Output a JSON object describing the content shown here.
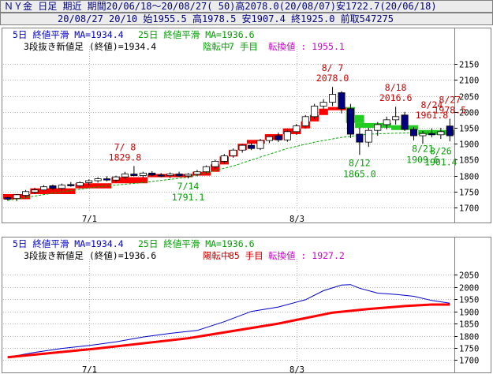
{
  "header": {
    "line1": "ＮＹ金 日足 期近 期間20/06/18～20/08/27( 50)高2078.0(20/08/07)安1722.7(20/06/18)",
    "line2": "20/08/27 20/10 始1955.5 高1978.5 安1907.4 終1925.0 前取547275"
  },
  "colors": {
    "blue_text": "#0000cc",
    "green_text": "#00a000",
    "red_text": "#cc0000",
    "up_box": "#ffffff",
    "down_box": "#000080",
    "red_brick": "#ff0000",
    "green_brick": "#22cc22",
    "ma5_line": "#0000cc",
    "ma25_line": "#00aa00",
    "frame": "#808080"
  },
  "chart_data": [
    {
      "type": "candlestick",
      "legend": {
        "ma5": "5日 終値平滑 MA=1934.4",
        "ma25": "25日 終値平滑 MA=1936.6",
        "renko_prefix": "3段抜き新値足 (終値)=1934.4",
        "renko_state": "陰転中",
        "renko_count": "7 手目",
        "renko_pivot": "転換値 : 1955.1"
      },
      "xticks": [
        {
          "index": 9,
          "label": "7/1"
        },
        {
          "index": 32,
          "label": "8/3"
        }
      ],
      "yticks": [
        1700,
        1750,
        1800,
        1850,
        1900,
        1950,
        2000,
        2050,
        2100,
        2150
      ],
      "ylim": [
        1690,
        2185
      ],
      "ma25_path": [
        [
          0,
          1722
        ],
        [
          5,
          1745
        ],
        [
          10,
          1765
        ],
        [
          15,
          1778
        ],
        [
          20,
          1795
        ],
        [
          25,
          1830
        ],
        [
          28,
          1858
        ],
        [
          31,
          1885
        ],
        [
          34,
          1905
        ],
        [
          37,
          1920
        ],
        [
          40,
          1930
        ],
        [
          43,
          1933
        ],
        [
          46,
          1935
        ],
        [
          49,
          1936
        ]
      ],
      "renko": [
        {
          "from": 0,
          "to": 2,
          "lo": 1726,
          "hi": 1742,
          "color": "red"
        },
        {
          "from": 3,
          "to": 7,
          "lo": 1742,
          "hi": 1760,
          "color": "red"
        },
        {
          "from": 8,
          "to": 11,
          "lo": 1760,
          "hi": 1776,
          "color": "red"
        },
        {
          "from": 12,
          "to": 15,
          "lo": 1776,
          "hi": 1795,
          "color": "red"
        },
        {
          "from": 16,
          "to": 20,
          "lo": 1795,
          "hi": 1805,
          "color": "red"
        },
        {
          "from": 21,
          "to": 22,
          "lo": 1800,
          "hi": 1812,
          "color": "red"
        },
        {
          "from": 23,
          "to": 23,
          "lo": 1812,
          "hi": 1835,
          "color": "red"
        },
        {
          "from": 24,
          "to": 24,
          "lo": 1835,
          "hi": 1860,
          "color": "red"
        },
        {
          "from": 25,
          "to": 25,
          "lo": 1860,
          "hi": 1880,
          "color": "red"
        },
        {
          "from": 26,
          "to": 26,
          "lo": 1880,
          "hi": 1900,
          "color": "red"
        },
        {
          "from": 27,
          "to": 28,
          "lo": 1900,
          "hi": 1912,
          "color": "red"
        },
        {
          "from": 29,
          "to": 30,
          "lo": 1912,
          "hi": 1930,
          "color": "red"
        },
        {
          "from": 31,
          "to": 32,
          "lo": 1930,
          "hi": 1948,
          "color": "red"
        },
        {
          "from": 33,
          "to": 33,
          "lo": 1948,
          "hi": 1970,
          "color": "red"
        },
        {
          "from": 34,
          "to": 34,
          "lo": 1970,
          "hi": 1990,
          "color": "red"
        },
        {
          "from": 35,
          "to": 35,
          "lo": 1990,
          "hi": 2010,
          "color": "red"
        },
        {
          "from": 36,
          "to": 37,
          "lo": 2005,
          "hi": 2015,
          "color": "red"
        },
        {
          "from": 38,
          "to": 38,
          "lo": 1990,
          "hi": 2015,
          "color": "green"
        },
        {
          "from": 38,
          "to": 39,
          "lo": 1965,
          "hi": 1990,
          "color": "green"
        },
        {
          "from": 39,
          "to": 42,
          "lo": 1950,
          "hi": 1965,
          "color": "green"
        },
        {
          "from": 43,
          "to": 45,
          "lo": 1943,
          "hi": 1958,
          "color": "green"
        },
        {
          "from": 46,
          "to": 49,
          "lo": 1928,
          "hi": 1943,
          "color": "green"
        }
      ],
      "candles": [
        {
          "o": 1731,
          "h": 1735,
          "l": 1722,
          "c": 1726
        },
        {
          "o": 1728,
          "h": 1742,
          "l": 1720,
          "c": 1740
        },
        {
          "o": 1738,
          "h": 1755,
          "l": 1732,
          "c": 1750
        },
        {
          "o": 1748,
          "h": 1762,
          "l": 1742,
          "c": 1755
        },
        {
          "o": 1755,
          "h": 1770,
          "l": 1750,
          "c": 1765
        },
        {
          "o": 1768,
          "h": 1772,
          "l": 1755,
          "c": 1760
        },
        {
          "o": 1760,
          "h": 1775,
          "l": 1755,
          "c": 1770
        },
        {
          "o": 1772,
          "h": 1780,
          "l": 1765,
          "c": 1768
        },
        {
          "o": 1768,
          "h": 1782,
          "l": 1760,
          "c": 1778
        },
        {
          "o": 1778,
          "h": 1788,
          "l": 1770,
          "c": 1784
        },
        {
          "o": 1784,
          "h": 1795,
          "l": 1778,
          "c": 1790
        },
        {
          "o": 1790,
          "h": 1798,
          "l": 1782,
          "c": 1786
        },
        {
          "o": 1786,
          "h": 1800,
          "l": 1780,
          "c": 1796
        },
        {
          "o": 1796,
          "h": 1812,
          "l": 1790,
          "c": 1805
        },
        {
          "o": 1805,
          "h": 1830,
          "l": 1798,
          "c": 1800
        },
        {
          "o": 1800,
          "h": 1812,
          "l": 1794,
          "c": 1808
        },
        {
          "o": 1808,
          "h": 1814,
          "l": 1798,
          "c": 1802
        },
        {
          "o": 1802,
          "h": 1808,
          "l": 1795,
          "c": 1800
        },
        {
          "o": 1800,
          "h": 1810,
          "l": 1792,
          "c": 1805
        },
        {
          "o": 1805,
          "h": 1812,
          "l": 1796,
          "c": 1799
        },
        {
          "o": 1799,
          "h": 1808,
          "l": 1791,
          "c": 1804
        },
        {
          "o": 1804,
          "h": 1818,
          "l": 1798,
          "c": 1812
        },
        {
          "o": 1812,
          "h": 1832,
          "l": 1808,
          "c": 1828
        },
        {
          "o": 1828,
          "h": 1850,
          "l": 1822,
          "c": 1845
        },
        {
          "o": 1845,
          "h": 1868,
          "l": 1838,
          "c": 1862
        },
        {
          "o": 1862,
          "h": 1885,
          "l": 1856,
          "c": 1880
        },
        {
          "o": 1880,
          "h": 1900,
          "l": 1872,
          "c": 1895
        },
        {
          "o": 1895,
          "h": 1902,
          "l": 1880,
          "c": 1885
        },
        {
          "o": 1885,
          "h": 1915,
          "l": 1880,
          "c": 1910
        },
        {
          "o": 1910,
          "h": 1928,
          "l": 1902,
          "c": 1922
        },
        {
          "o": 1925,
          "h": 1935,
          "l": 1905,
          "c": 1912
        },
        {
          "o": 1912,
          "h": 1942,
          "l": 1906,
          "c": 1938
        },
        {
          "o": 1938,
          "h": 1962,
          "l": 1928,
          "c": 1956
        },
        {
          "o": 1956,
          "h": 1990,
          "l": 1948,
          "c": 1985
        },
        {
          "o": 1985,
          "h": 2025,
          "l": 1978,
          "c": 2018
        },
        {
          "o": 2018,
          "h": 2040,
          "l": 2008,
          "c": 2030
        },
        {
          "o": 2030,
          "h": 2078,
          "l": 2018,
          "c": 2055
        },
        {
          "o": 2060,
          "h": 2065,
          "l": 1995,
          "c": 2010
        },
        {
          "o": 2010,
          "h": 2025,
          "l": 1918,
          "c": 1930
        },
        {
          "o": 1930,
          "h": 1950,
          "l": 1865,
          "c": 1905
        },
        {
          "o": 1905,
          "h": 1950,
          "l": 1890,
          "c": 1942
        },
        {
          "o": 1942,
          "h": 1968,
          "l": 1925,
          "c": 1960
        },
        {
          "o": 1960,
          "h": 1985,
          "l": 1945,
          "c": 1975
        },
        {
          "o": 1975,
          "h": 2016,
          "l": 1960,
          "c": 1985
        },
        {
          "o": 1990,
          "h": 2000,
          "l": 1940,
          "c": 1945
        },
        {
          "o": 1945,
          "h": 1952,
          "l": 1910,
          "c": 1925
        },
        {
          "o": 1925,
          "h": 1940,
          "l": 1900,
          "c": 1932
        },
        {
          "o": 1932,
          "h": 1948,
          "l": 1920,
          "c": 1928
        },
        {
          "o": 1928,
          "h": 1950,
          "l": 1915,
          "c": 1938
        },
        {
          "o": 1955.5,
          "h": 1978.5,
          "l": 1907.4,
          "c": 1925
        }
      ],
      "annotations": [
        {
          "index": 13,
          "text": "7/ 8",
          "value": 1829.8,
          "value_text": "1829.8",
          "color": "red",
          "pos": "above"
        },
        {
          "index": 36,
          "text": "8/ 7",
          "value": 2078.0,
          "value_text": "2078.0",
          "color": "red",
          "pos": "above"
        },
        {
          "index": 43,
          "text": "8/18",
          "value": 2016.6,
          "value_text": "2016.6",
          "color": "red",
          "pos": "above"
        },
        {
          "index": 47,
          "text": "8/24",
          "value": 1961.8,
          "value_text": "1961.8",
          "color": "red",
          "pos": "above"
        },
        {
          "index": 49,
          "text": "8/27",
          "value": 1978.5,
          "value_text": "1978.5",
          "color": "red",
          "pos": "above"
        },
        {
          "index": 20,
          "text": "7/14",
          "value": 1791.1,
          "value_text": "1791.1",
          "color": "green",
          "pos": "below"
        },
        {
          "index": 39,
          "text": "8/12",
          "value": 1865.0,
          "value_text": "1865.0",
          "color": "green",
          "pos": "below"
        },
        {
          "index": 46,
          "text": "8/21",
          "value": 1909.6,
          "value_text": "1909.6",
          "color": "green",
          "pos": "below"
        },
        {
          "index": 48,
          "text": "8/26",
          "value": 1901.4,
          "value_text": "1901.4",
          "color": "green",
          "pos": "below"
        }
      ]
    },
    {
      "type": "line",
      "legend": {
        "ma5": "5日 終値平滑 MA=1934.4",
        "ma25": "25日 終値平滑 MA=1936.6",
        "renko_prefix": "3段抜き新値足 (終値)=1936.6",
        "renko_state": "陽転中",
        "renko_count": "85 手目",
        "renko_pivot": "転換値 : 1927.2"
      },
      "xticks": [
        {
          "index": 9,
          "label": "7/1"
        },
        {
          "index": 32,
          "label": "8/3"
        }
      ],
      "yticks": [
        1700,
        1750,
        1800,
        1850,
        1900,
        1950,
        2000,
        2050
      ],
      "ylim": [
        1695,
        2090
      ],
      "ma5_path": [
        [
          0,
          1712
        ],
        [
          3,
          1732
        ],
        [
          6,
          1748
        ],
        [
          9,
          1760
        ],
        [
          12,
          1775
        ],
        [
          15,
          1795
        ],
        [
          18,
          1810
        ],
        [
          21,
          1822
        ],
        [
          24,
          1858
        ],
        [
          27,
          1900
        ],
        [
          30,
          1918
        ],
        [
          33,
          1948
        ],
        [
          35,
          1985
        ],
        [
          37,
          2008
        ],
        [
          38,
          2010
        ],
        [
          39,
          1995
        ],
        [
          41,
          1975
        ],
        [
          43,
          1970
        ],
        [
          45,
          1962
        ],
        [
          47,
          1945
        ],
        [
          49,
          1934
        ]
      ],
      "renko_path": [
        [
          0,
          1712
        ],
        [
          10,
          1748
        ],
        [
          20,
          1790
        ],
        [
          30,
          1850
        ],
        [
          36,
          1895
        ],
        [
          40,
          1910
        ],
        [
          44,
          1922
        ],
        [
          47,
          1928
        ],
        [
          49,
          1928
        ]
      ]
    }
  ]
}
